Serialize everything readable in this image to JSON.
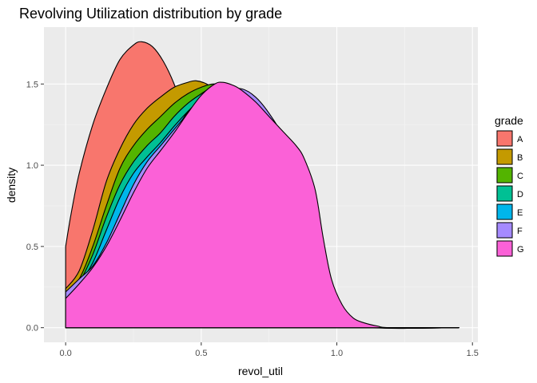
{
  "chart_data": {
    "type": "area",
    "title": "Revolving Utilization distribution by grade",
    "xlabel": "revol_util",
    "ylabel": "density",
    "xlim": [
      -0.08,
      1.52
    ],
    "ylim": [
      -0.09,
      1.85
    ],
    "x_ticks": [
      0.0,
      0.5,
      1.0,
      1.5
    ],
    "x_tick_labels": [
      "0.0",
      "0.5",
      "1.0",
      "1.5"
    ],
    "y_ticks": [
      0.0,
      0.5,
      1.0,
      1.5
    ],
    "y_tick_labels": [
      "0.0",
      "0.5",
      "1.0",
      "1.5"
    ],
    "grid": true,
    "legend": {
      "title": "grade",
      "position": "right"
    },
    "series": [
      {
        "name": "A",
        "color": "#F8766D",
        "points": [
          [
            0,
            0.5
          ],
          [
            0.02,
            0.7
          ],
          [
            0.05,
            0.95
          ],
          [
            0.1,
            1.25
          ],
          [
            0.15,
            1.47
          ],
          [
            0.2,
            1.65
          ],
          [
            0.25,
            1.74
          ],
          [
            0.28,
            1.76
          ],
          [
            0.32,
            1.73
          ],
          [
            0.36,
            1.64
          ],
          [
            0.4,
            1.5
          ],
          [
            0.43,
            1.35
          ],
          [
            0.46,
            1.15
          ],
          [
            0.5,
            0.9
          ],
          [
            0.55,
            0.6
          ],
          [
            0.6,
            0.35
          ],
          [
            0.65,
            0.18
          ],
          [
            0.7,
            0.08
          ],
          [
            0.75,
            0.03
          ],
          [
            0.8,
            0.01
          ],
          [
            0.9,
            0.0
          ],
          [
            1.0,
            0.0
          ],
          [
            1.45,
            0.0
          ]
        ]
      },
      {
        "name": "B",
        "color": "#C49A00",
        "points": [
          [
            0,
            0.24
          ],
          [
            0.05,
            0.35
          ],
          [
            0.1,
            0.6
          ],
          [
            0.15,
            0.9
          ],
          [
            0.2,
            1.1
          ],
          [
            0.25,
            1.25
          ],
          [
            0.3,
            1.35
          ],
          [
            0.35,
            1.42
          ],
          [
            0.4,
            1.48
          ],
          [
            0.45,
            1.51
          ],
          [
            0.48,
            1.52
          ],
          [
            0.52,
            1.5
          ],
          [
            0.55,
            1.46
          ],
          [
            0.6,
            1.38
          ],
          [
            0.65,
            1.25
          ],
          [
            0.7,
            1.08
          ],
          [
            0.75,
            0.88
          ],
          [
            0.8,
            0.65
          ],
          [
            0.85,
            0.42
          ],
          [
            0.9,
            0.22
          ],
          [
            0.95,
            0.09
          ],
          [
            1.0,
            0.03
          ],
          [
            1.1,
            0.0
          ],
          [
            1.45,
            0.0
          ]
        ]
      },
      {
        "name": "C",
        "color": "#53B400",
        "points": [
          [
            0,
            0.22
          ],
          [
            0.05,
            0.3
          ],
          [
            0.1,
            0.5
          ],
          [
            0.15,
            0.75
          ],
          [
            0.2,
            0.98
          ],
          [
            0.25,
            1.12
          ],
          [
            0.3,
            1.22
          ],
          [
            0.35,
            1.3
          ],
          [
            0.4,
            1.38
          ],
          [
            0.45,
            1.44
          ],
          [
            0.5,
            1.48
          ],
          [
            0.55,
            1.5
          ],
          [
            0.6,
            1.47
          ],
          [
            0.65,
            1.38
          ],
          [
            0.7,
            1.24
          ],
          [
            0.75,
            1.08
          ],
          [
            0.8,
            0.88
          ],
          [
            0.85,
            0.62
          ],
          [
            0.9,
            0.38
          ],
          [
            0.95,
            0.18
          ],
          [
            1.0,
            0.07
          ],
          [
            1.05,
            0.02
          ],
          [
            1.15,
            0.0
          ],
          [
            1.45,
            0.0
          ]
        ]
      },
      {
        "name": "D",
        "color": "#00C094",
        "points": [
          [
            0,
            0.21
          ],
          [
            0.05,
            0.28
          ],
          [
            0.1,
            0.45
          ],
          [
            0.15,
            0.68
          ],
          [
            0.2,
            0.88
          ],
          [
            0.25,
            1.02
          ],
          [
            0.3,
            1.12
          ],
          [
            0.35,
            1.2
          ],
          [
            0.4,
            1.3
          ],
          [
            0.45,
            1.38
          ],
          [
            0.5,
            1.44
          ],
          [
            0.55,
            1.49
          ],
          [
            0.6,
            1.5
          ],
          [
            0.65,
            1.44
          ],
          [
            0.7,
            1.32
          ],
          [
            0.75,
            1.18
          ],
          [
            0.8,
            1.02
          ],
          [
            0.85,
            0.8
          ],
          [
            0.9,
            0.55
          ],
          [
            0.95,
            0.3
          ],
          [
            1.0,
            0.12
          ],
          [
            1.05,
            0.04
          ],
          [
            1.15,
            0.0
          ],
          [
            1.45,
            0.0
          ]
        ]
      },
      {
        "name": "E",
        "color": "#00B6EB",
        "points": [
          [
            0,
            0.2
          ],
          [
            0.05,
            0.27
          ],
          [
            0.1,
            0.4
          ],
          [
            0.15,
            0.6
          ],
          [
            0.2,
            0.8
          ],
          [
            0.25,
            0.95
          ],
          [
            0.3,
            1.05
          ],
          [
            0.35,
            1.14
          ],
          [
            0.4,
            1.24
          ],
          [
            0.45,
            1.33
          ],
          [
            0.5,
            1.41
          ],
          [
            0.55,
            1.47
          ],
          [
            0.6,
            1.49
          ],
          [
            0.65,
            1.45
          ],
          [
            0.7,
            1.36
          ],
          [
            0.75,
            1.24
          ],
          [
            0.8,
            1.1
          ],
          [
            0.85,
            0.9
          ],
          [
            0.9,
            0.65
          ],
          [
            0.95,
            0.38
          ],
          [
            1.0,
            0.16
          ],
          [
            1.05,
            0.05
          ],
          [
            1.15,
            0.0
          ],
          [
            1.45,
            0.0
          ]
        ]
      },
      {
        "name": "F",
        "color": "#A58AFF",
        "points": [
          [
            0,
            0.22
          ],
          [
            0.05,
            0.3
          ],
          [
            0.1,
            0.38
          ],
          [
            0.15,
            0.52
          ],
          [
            0.2,
            0.7
          ],
          [
            0.25,
            0.88
          ],
          [
            0.3,
            1.02
          ],
          [
            0.35,
            1.12
          ],
          [
            0.4,
            1.22
          ],
          [
            0.43,
            1.28
          ],
          [
            0.46,
            1.34
          ],
          [
            0.5,
            1.3
          ],
          [
            0.55,
            1.38
          ],
          [
            0.6,
            1.46
          ],
          [
            0.65,
            1.47
          ],
          [
            0.7,
            1.42
          ],
          [
            0.75,
            1.32
          ],
          [
            0.8,
            1.18
          ],
          [
            0.85,
            0.96
          ],
          [
            0.9,
            0.7
          ],
          [
            0.95,
            0.42
          ],
          [
            1.0,
            0.18
          ],
          [
            1.05,
            0.06
          ],
          [
            1.15,
            0.0
          ],
          [
            1.45,
            0.0
          ]
        ]
      },
      {
        "name": "G",
        "color": "#FB61D7",
        "points": [
          [
            0,
            0.18
          ],
          [
            0.05,
            0.27
          ],
          [
            0.1,
            0.37
          ],
          [
            0.15,
            0.5
          ],
          [
            0.2,
            0.66
          ],
          [
            0.25,
            0.83
          ],
          [
            0.3,
            0.98
          ],
          [
            0.35,
            1.09
          ],
          [
            0.4,
            1.2
          ],
          [
            0.45,
            1.32
          ],
          [
            0.5,
            1.43
          ],
          [
            0.55,
            1.5
          ],
          [
            0.58,
            1.51
          ],
          [
            0.62,
            1.49
          ],
          [
            0.65,
            1.46
          ],
          [
            0.7,
            1.39
          ],
          [
            0.75,
            1.3
          ],
          [
            0.8,
            1.21
          ],
          [
            0.85,
            1.12
          ],
          [
            0.88,
            1.04
          ],
          [
            0.92,
            0.85
          ],
          [
            0.95,
            0.55
          ],
          [
            0.98,
            0.3
          ],
          [
            1.02,
            0.14
          ],
          [
            1.06,
            0.06
          ],
          [
            1.1,
            0.03
          ],
          [
            1.15,
            0.01
          ],
          [
            1.2,
            0.0
          ],
          [
            1.45,
            0.0
          ]
        ]
      }
    ]
  }
}
